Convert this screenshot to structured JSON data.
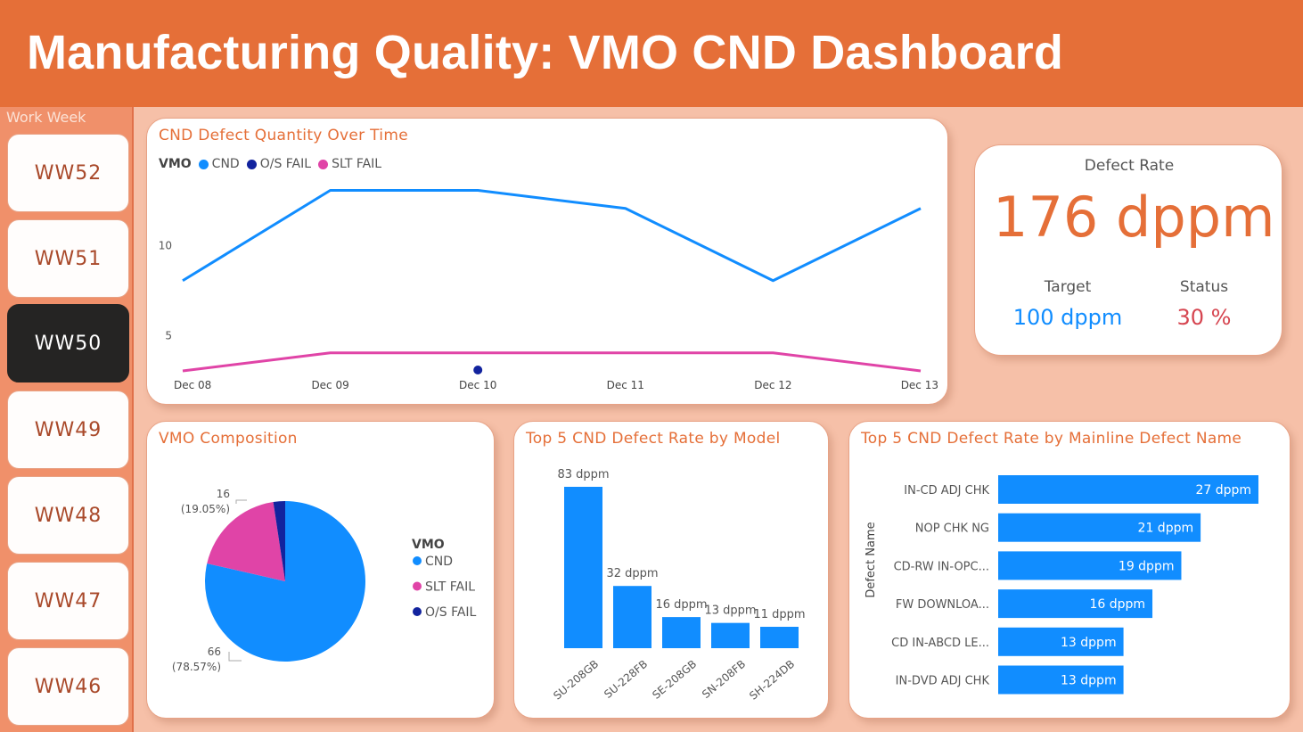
{
  "header": {
    "title": "Manufacturing Quality: VMO CND Dashboard"
  },
  "sidebar": {
    "title": "Work Week",
    "weeks": [
      "WW52",
      "WW51",
      "WW50",
      "WW49",
      "WW48",
      "WW47",
      "WW46"
    ],
    "selected": "WW50"
  },
  "colors": {
    "accent": "#e56f38",
    "cnd": "#118dff",
    "os_fail": "#12239e",
    "slt_fail": "#e044a7",
    "target": "#118dff",
    "status": "#d64550"
  },
  "kpi": {
    "title": "Defect Rate",
    "value": "176 dppm",
    "target_label": "Target",
    "target_value": "100 dppm",
    "status_label": "Status",
    "status_value": "30 %"
  },
  "line_card": {
    "title": "CND Defect Quantity Over Time"
  },
  "pie_card": {
    "title": "VMO Composition"
  },
  "model_card": {
    "title": "Top 5 CND Defect Rate by Model"
  },
  "defect_card": {
    "title": "Top 5 CND Defect Rate by Mainline Defect Name"
  },
  "chart_data": [
    {
      "type": "line",
      "title": "CND Defect Quantity Over Time",
      "legend_title": "VMO",
      "x": [
        "Dec 08",
        "Dec 09",
        "Dec 10",
        "Dec 11",
        "Dec 12",
        "Dec 13"
      ],
      "yticks": [
        5,
        10
      ],
      "ylim": [
        3,
        15
      ],
      "series": [
        {
          "name": "CND",
          "color": "#118dff",
          "values": [
            8,
            13,
            13,
            12,
            8,
            12
          ]
        },
        {
          "name": "O/S FAIL",
          "color": "#12239e",
          "values": [
            null,
            null,
            3,
            null,
            null,
            null
          ]
        },
        {
          "name": "SLT FAIL",
          "color": "#e044a7",
          "values": [
            3,
            4,
            4,
            4,
            4,
            3
          ]
        }
      ],
      "legend_position": "top-left",
      "grid": false
    },
    {
      "type": "pie",
      "title": "VMO Composition",
      "legend_title": "VMO",
      "legend_position": "right",
      "slices": [
        {
          "name": "CND",
          "value": 66,
          "label": "66",
          "pct": "(78.57%)",
          "color": "#118dff"
        },
        {
          "name": "SLT FAIL",
          "value": 16,
          "label": "16",
          "pct": "(19.05%)",
          "color": "#e044a7"
        },
        {
          "name": "O/S FAIL",
          "value": 2,
          "color": "#12239e"
        }
      ]
    },
    {
      "type": "bar",
      "title": "Top 5 CND Defect Rate by Model",
      "categories": [
        "SU-208GB",
        "SU-228FB",
        "SE-208GB",
        "SN-208FB",
        "SH-224DB"
      ],
      "values": [
        83,
        32,
        16,
        13,
        11
      ],
      "labels": [
        "83 dppm",
        "32 dppm",
        "16 dppm",
        "13 dppm",
        "11 dppm"
      ],
      "ylim": [
        0,
        83
      ]
    },
    {
      "type": "bar",
      "orientation": "horizontal",
      "title": "Top 5 CND Defect Rate by Mainline Defect Name",
      "ylabel": "Defect Name",
      "categories": [
        "IN-CD ADJ CHK",
        "NOP CHK NG",
        "CD-RW IN-OPC...",
        "FW DOWNLOA...",
        "CD IN-ABCD LE...",
        "IN-DVD ADJ CHK"
      ],
      "values": [
        27,
        21,
        19,
        16,
        13,
        13
      ],
      "labels": [
        "27 dppm",
        "21 dppm",
        "19 dppm",
        "16 dppm",
        "13 dppm",
        "13 dppm"
      ],
      "xlim": [
        0,
        27
      ]
    }
  ]
}
